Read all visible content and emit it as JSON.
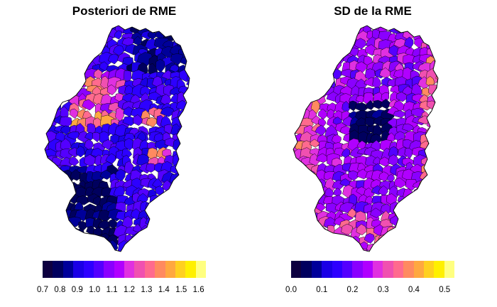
{
  "panels": [
    {
      "title": "Posteriori de RME",
      "legend": {
        "colors": [
          "#0d0040",
          "#00005e",
          "#00009a",
          "#1a00e6",
          "#2d00ff",
          "#5400ff",
          "#8a00ff",
          "#b000ff",
          "#e030e0",
          "#f050b0",
          "#ff6a8e",
          "#ff8a60",
          "#ffa840",
          "#ffd020",
          "#fff000",
          "#ffff80"
        ],
        "ticks": [
          "0.7",
          "0.8",
          "0.9",
          "1.0",
          "1.1",
          "1.2",
          "1.3",
          "1.4",
          "1.5",
          "1.6"
        ]
      }
    },
    {
      "title": "SD de la RME",
      "legend": {
        "colors": [
          "#0d0040",
          "#00005e",
          "#00009a",
          "#1a00e6",
          "#2d00ff",
          "#5400ff",
          "#8a00ff",
          "#b000ff",
          "#e030e0",
          "#f050b0",
          "#ff6a8e",
          "#ff8a60",
          "#ffa840",
          "#ffd020",
          "#fff000",
          "#ffff80"
        ],
        "ticks": [
          "0.0",
          "0.1",
          "0.2",
          "0.3",
          "0.4",
          "0.5"
        ]
      }
    }
  ]
}
